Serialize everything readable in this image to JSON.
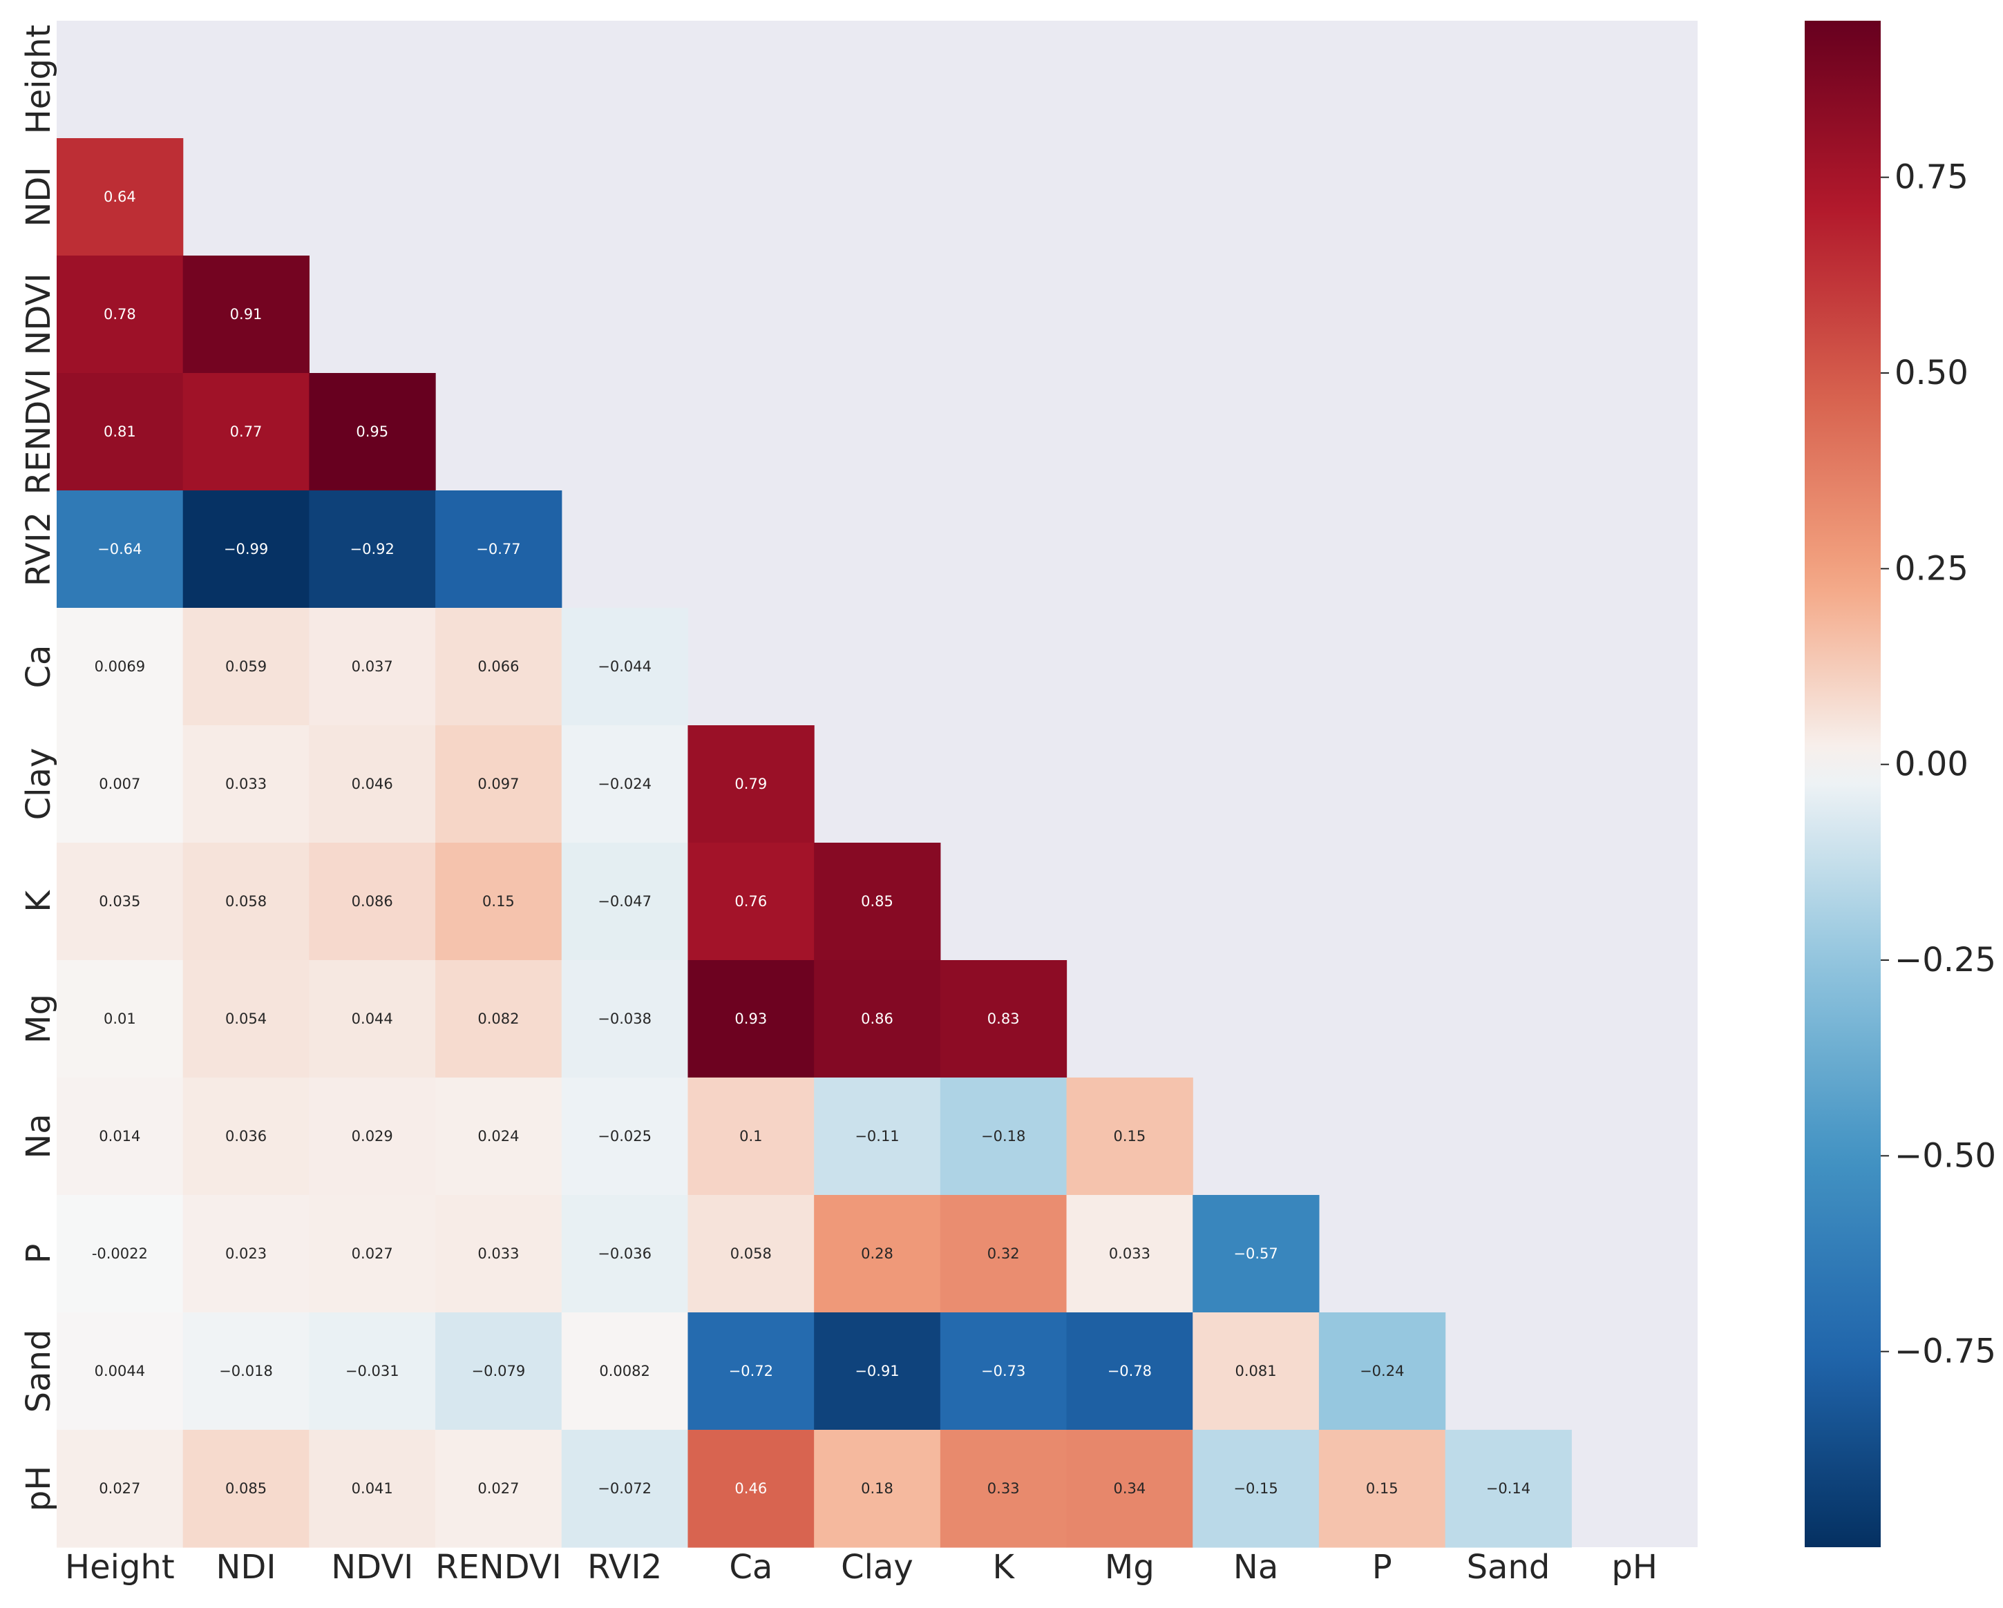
{
  "chart_data": {
    "type": "heatmap",
    "title": "",
    "xlabel": "",
    "ylabel": "",
    "variables": [
      "Height",
      "NDI",
      "NDVI",
      "RENDVI",
      "RVI2",
      "Ca",
      "Clay",
      "K",
      "Mg",
      "Na",
      "P",
      "Sand",
      "pH"
    ],
    "mask": "upper-triangle-including-diagonal",
    "colormap": "RdBu_r",
    "vmin": -1.0,
    "vmax": 0.95,
    "colorbar_ticks": [
      "0.75",
      "0.50",
      "0.25",
      "0.00",
      "−0.25",
      "−0.50",
      "−0.75"
    ],
    "colorbar_tick_values": [
      0.75,
      0.5,
      0.25,
      0.0,
      -0.25,
      -0.5,
      -0.75
    ],
    "masked_color": "#eaeaf2",
    "rows": [
      {
        "row": "Height",
        "values": []
      },
      {
        "row": "NDI",
        "values": [
          0.64
        ],
        "labels": [
          "0.64"
        ]
      },
      {
        "row": "NDVI",
        "values": [
          0.78,
          0.91
        ],
        "labels": [
          "0.78",
          "0.91"
        ]
      },
      {
        "row": "RENDVI",
        "values": [
          0.81,
          0.77,
          0.95
        ],
        "labels": [
          "0.81",
          "0.77",
          "0.95"
        ]
      },
      {
        "row": "RVI2",
        "values": [
          -0.64,
          -0.99,
          -0.92,
          -0.77
        ],
        "labels": [
          "−0.64",
          "−0.99",
          "−0.92",
          "−0.77"
        ]
      },
      {
        "row": "Ca",
        "values": [
          0.0069,
          0.059,
          0.037,
          0.066,
          -0.044
        ],
        "labels": [
          "0.0069",
          "0.059",
          "0.037",
          "0.066",
          "−0.044"
        ]
      },
      {
        "row": "Clay",
        "values": [
          0.007,
          0.033,
          0.046,
          0.097,
          -0.024,
          0.79
        ],
        "labels": [
          "0.007",
          "0.033",
          "0.046",
          "0.097",
          "−0.024",
          "0.79"
        ]
      },
      {
        "row": "K",
        "values": [
          0.035,
          0.058,
          0.086,
          0.15,
          -0.047,
          0.76,
          0.85
        ],
        "labels": [
          "0.035",
          "0.058",
          "0.086",
          "0.15",
          "−0.047",
          "0.76",
          "0.85"
        ]
      },
      {
        "row": "Mg",
        "values": [
          0.01,
          0.054,
          0.044,
          0.082,
          -0.038,
          0.93,
          0.86,
          0.83
        ],
        "labels": [
          "0.01",
          "0.054",
          "0.044",
          "0.082",
          "−0.038",
          "0.93",
          "0.86",
          "0.83"
        ]
      },
      {
        "row": "Na",
        "values": [
          0.014,
          0.036,
          0.029,
          0.024,
          -0.025,
          0.1,
          -0.11,
          -0.18,
          0.15
        ],
        "labels": [
          "0.014",
          "0.036",
          "0.029",
          "0.024",
          "−0.025",
          "0.1",
          "−0.11",
          "−0.18",
          "0.15"
        ]
      },
      {
        "row": "P",
        "values": [
          -0.0022,
          0.023,
          0.027,
          0.033,
          -0.036,
          0.058,
          0.28,
          0.32,
          0.033,
          -0.57
        ],
        "labels": [
          "-0.0022",
          "0.023",
          "0.027",
          "0.033",
          "−0.036",
          "0.058",
          "0.28",
          "0.32",
          "0.033",
          "−0.57"
        ]
      },
      {
        "row": "Sand",
        "values": [
          0.0044,
          -0.018,
          -0.031,
          -0.079,
          0.0082,
          -0.72,
          -0.91,
          -0.73,
          -0.78,
          0.081,
          -0.24
        ],
        "labels": [
          "0.0044",
          "−0.018",
          "−0.031",
          "−0.079",
          "0.0082",
          "−0.72",
          "−0.91",
          "−0.73",
          "−0.78",
          "0.081",
          "−0.24"
        ]
      },
      {
        "row": "pH",
        "values": [
          0.027,
          0.085,
          0.041,
          0.027,
          -0.072,
          0.46,
          0.18,
          0.33,
          0.34,
          -0.15,
          0.15,
          -0.14
        ],
        "labels": [
          "0.027",
          "0.085",
          "0.041",
          "0.027",
          "−0.072",
          "0.46",
          "0.18",
          "0.33",
          "0.34",
          "−0.15",
          "0.15",
          "−0.14"
        ]
      }
    ]
  }
}
